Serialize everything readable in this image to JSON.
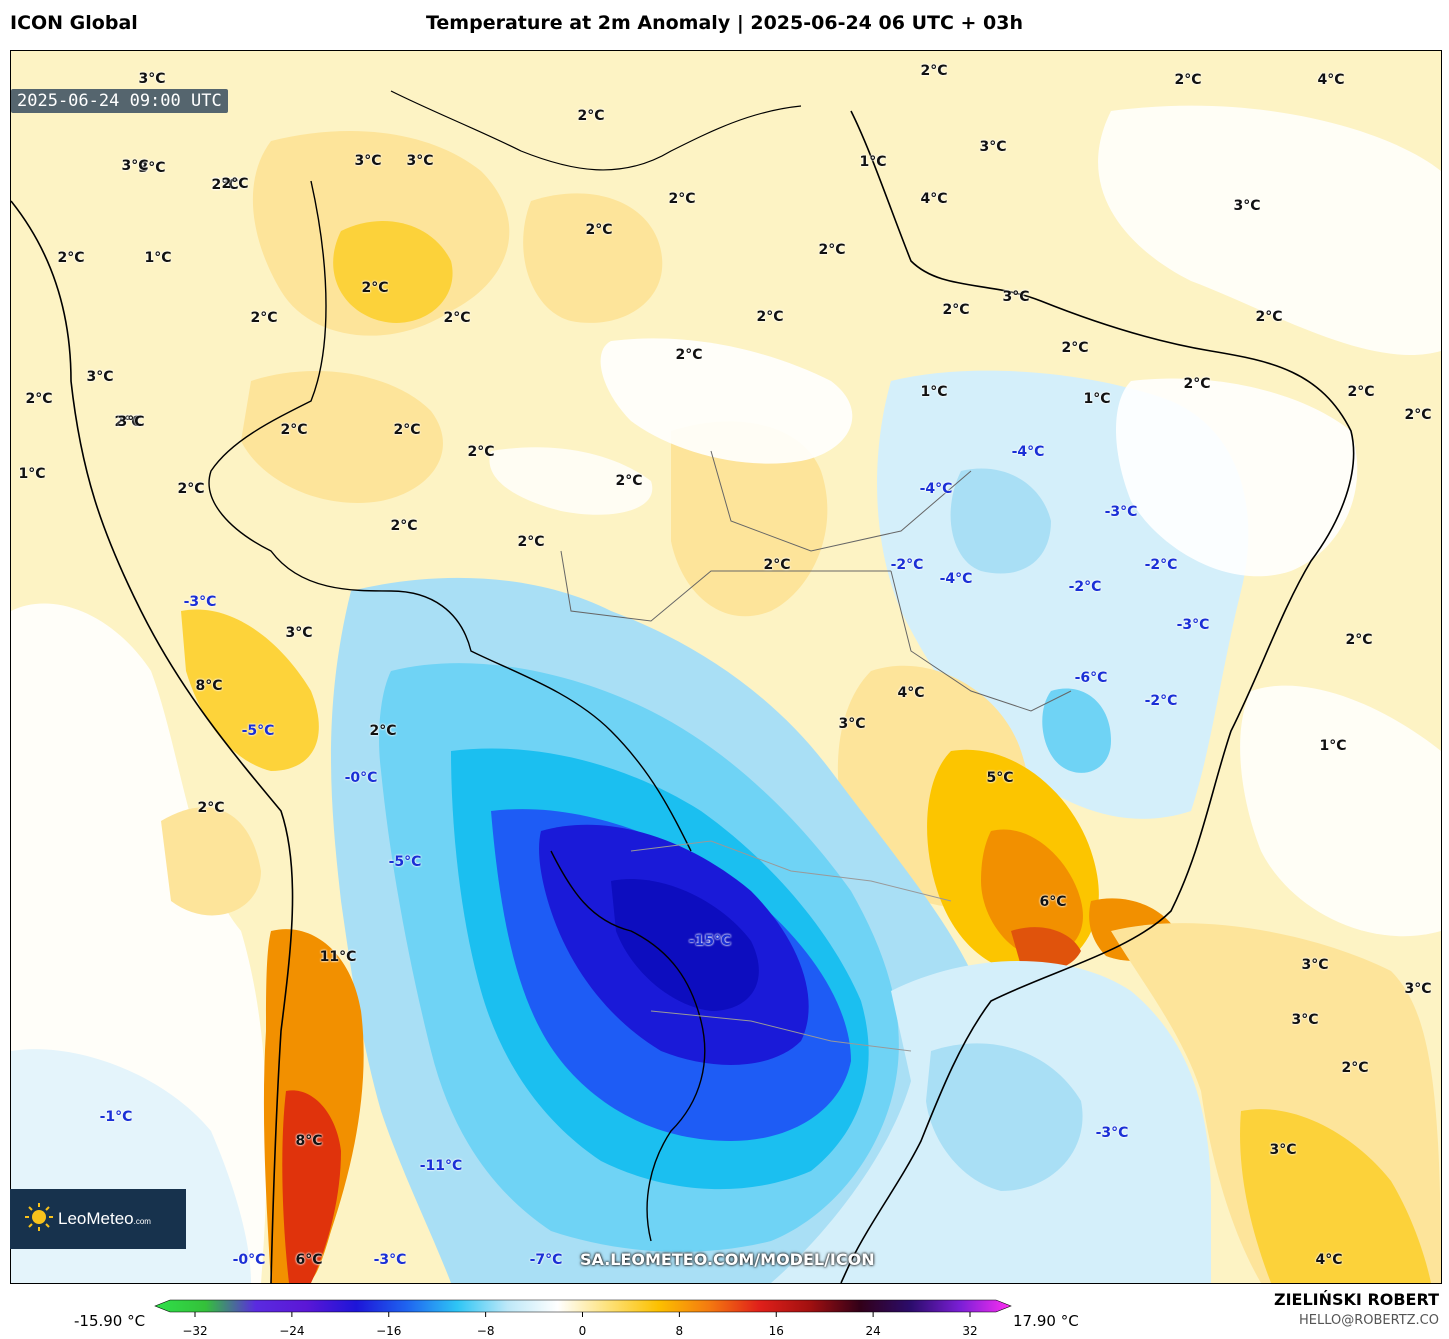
{
  "header": {
    "model": "ICON Global",
    "title": "Temperature at 2m Anomaly | 2025-06-24 06 UTC + 03h"
  },
  "map": {
    "valid_time": "2025-06-24 09:00 UTC",
    "watermark": "SA.LEOMETEO.COM/MODEL/ICON",
    "logo": {
      "name": "LeoMeteo",
      "suffix": ".com"
    },
    "colors": {
      "warm_light": "#fdf3c4",
      "warm_mid": "#fde49a",
      "warm_strong": "#fcc500",
      "orange": "#f29000",
      "red": "#e0330c",
      "cool_light": "#d4effa",
      "cool_mid": "#6fd3f5",
      "cyan": "#1bbff0",
      "blue": "#1e5cf5",
      "deep_blue": "#1a1ad8",
      "neutral": "#ffffff",
      "land_border": "#000000",
      "state_border": "#666666"
    },
    "labels": [
      {
        "text": "3°C",
        "sign": "pos"
      },
      {
        "text": "3°C",
        "sign": "pos"
      },
      {
        "text": "2°C",
        "sign": "pos"
      },
      {
        "text": "3°C",
        "sign": "pos"
      },
      {
        "text": "3°C",
        "sign": "pos"
      },
      {
        "text": "2°C",
        "sign": "pos"
      },
      {
        "text": "2°C",
        "sign": "pos"
      },
      {
        "text": "2°C",
        "sign": "pos"
      },
      {
        "text": "4°C",
        "sign": "pos"
      },
      {
        "text": "2°C",
        "sign": "pos"
      },
      {
        "text": "2°C",
        "sign": "pos"
      },
      {
        "text": "1°C",
        "sign": "pos"
      },
      {
        "text": "2°C",
        "sign": "pos"
      },
      {
        "text": "2°C",
        "sign": "pos"
      },
      {
        "text": "3°C",
        "sign": "pos"
      },
      {
        "text": "2°C",
        "sign": "pos"
      },
      {
        "text": "1°C",
        "sign": "pos"
      },
      {
        "text": "4°C",
        "sign": "pos"
      },
      {
        "text": "3°C",
        "sign": "pos"
      },
      {
        "text": "3°C",
        "sign": "pos"
      },
      {
        "text": "2°C",
        "sign": "pos"
      },
      {
        "text": "2°C",
        "sign": "pos"
      },
      {
        "text": "2°C",
        "sign": "pos"
      },
      {
        "text": "2°C",
        "sign": "pos"
      },
      {
        "text": "2°C",
        "sign": "pos"
      },
      {
        "text": "3°C",
        "sign": "pos"
      },
      {
        "text": "2°C",
        "sign": "pos"
      },
      {
        "text": "2°C",
        "sign": "pos"
      },
      {
        "text": "2°C",
        "sign": "pos"
      },
      {
        "text": "2°C",
        "sign": "pos"
      },
      {
        "text": "3°C",
        "sign": "pos"
      },
      {
        "text": "2°C",
        "sign": "pos"
      },
      {
        "text": "1°C",
        "sign": "pos"
      },
      {
        "text": "1°C",
        "sign": "pos"
      },
      {
        "text": "2°C",
        "sign": "pos"
      },
      {
        "text": "2°C",
        "sign": "pos"
      },
      {
        "text": "2°C",
        "sign": "pos"
      },
      {
        "text": "1°C",
        "sign": "pos"
      },
      {
        "text": "2°C",
        "sign": "pos"
      },
      {
        "text": "-4°C",
        "sign": "neg"
      },
      {
        "text": "2°C",
        "sign": "pos"
      },
      {
        "text": "2°C",
        "sign": "pos"
      },
      {
        "text": "-4°C",
        "sign": "neg"
      },
      {
        "text": "2°C",
        "sign": "pos"
      },
      {
        "text": "3°C",
        "sign": "pos"
      },
      {
        "text": "-3°C",
        "sign": "neg"
      },
      {
        "text": "2°C",
        "sign": "pos"
      },
      {
        "text": "2°C",
        "sign": "pos"
      },
      {
        "text": "2°C",
        "sign": "pos"
      },
      {
        "text": "2°C",
        "sign": "pos"
      },
      {
        "text": "-2°C",
        "sign": "neg"
      },
      {
        "text": "-4°C",
        "sign": "neg"
      },
      {
        "text": "-2°C",
        "sign": "neg"
      },
      {
        "text": "-2°C",
        "sign": "neg"
      },
      {
        "text": "2°C",
        "sign": "pos"
      },
      {
        "text": "-3°C",
        "sign": "neg"
      },
      {
        "text": "-3°C",
        "sign": "neg"
      },
      {
        "text": "3°C",
        "sign": "pos"
      },
      {
        "text": "2°C",
        "sign": "pos"
      },
      {
        "text": "8°C",
        "sign": "pos"
      },
      {
        "text": "-6°C",
        "sign": "neg"
      },
      {
        "text": "4°C",
        "sign": "pos"
      },
      {
        "text": "-2°C",
        "sign": "neg"
      },
      {
        "text": "-5°C",
        "sign": "neg"
      },
      {
        "text": "3°C",
        "sign": "pos"
      },
      {
        "text": "2°C",
        "sign": "pos"
      },
      {
        "text": "1°C",
        "sign": "pos"
      },
      {
        "text": "-0°C",
        "sign": "neg"
      },
      {
        "text": "5°C",
        "sign": "pos"
      },
      {
        "text": "2°C",
        "sign": "pos"
      },
      {
        "text": "-5°C",
        "sign": "neg"
      },
      {
        "text": "6°C",
        "sign": "pos"
      },
      {
        "text": "-15°C",
        "sign": "neg"
      },
      {
        "text": "11°C",
        "sign": "pos"
      },
      {
        "text": "3°C",
        "sign": "pos"
      },
      {
        "text": "3°C",
        "sign": "pos"
      },
      {
        "text": "3°C",
        "sign": "pos"
      },
      {
        "text": "2°C",
        "sign": "pos"
      },
      {
        "text": "-1°C",
        "sign": "neg"
      },
      {
        "text": "-3°C",
        "sign": "neg"
      },
      {
        "text": "8°C",
        "sign": "pos"
      },
      {
        "text": "3°C",
        "sign": "pos"
      },
      {
        "text": "-11°C",
        "sign": "neg"
      },
      {
        "text": "-0°C",
        "sign": "neg"
      },
      {
        "text": "6°C",
        "sign": "pos"
      },
      {
        "text": "-3°C",
        "sign": "neg"
      },
      {
        "text": "-7°C",
        "sign": "neg"
      },
      {
        "text": "4°C",
        "sign": "pos"
      }
    ]
  },
  "colorbar": {
    "min_label": "-15.90 °C",
    "max_label": "17.90 °C",
    "ticks": [
      "−32",
      "−24",
      "−16",
      "−8",
      "0",
      "8",
      "16",
      "24",
      "32"
    ],
    "stops": [
      "#2fe04a",
      "#34c13a",
      "#5a2be0",
      "#5b17d6",
      "#1d15d8",
      "#1f64f0",
      "#2ec5f5",
      "#bde8f8",
      "#ffffff",
      "#fde27a",
      "#fcc000",
      "#f47a10",
      "#e0201a",
      "#a21010",
      "#320018",
      "#2b0c6b",
      "#7b1fd6",
      "#ff2ef2"
    ]
  },
  "author": {
    "name": "ZIELIŃSKI ROBERT",
    "email": "HELLO@ROBERTZ.CO"
  }
}
